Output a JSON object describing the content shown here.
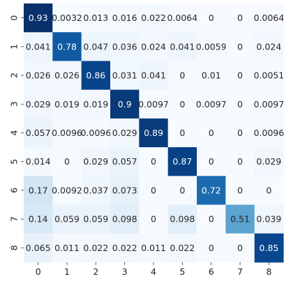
{
  "chart_data": {
    "type": "heatmap",
    "title": "",
    "xlabel": "",
    "ylabel": "",
    "x_categories": [
      "0",
      "1",
      "2",
      "3",
      "4",
      "5",
      "6",
      "7",
      "8"
    ],
    "y_categories": [
      "0",
      "1",
      "2",
      "3",
      "4",
      "5",
      "6",
      "7",
      "8"
    ],
    "colormap": "Blues",
    "vmin": 0,
    "vmax": 0.93,
    "colorbar": false,
    "text_color_dark": "#262626",
    "text_color_light": "#ffffff",
    "values": [
      [
        0.93,
        0.0032,
        0.013,
        0.016,
        0.022,
        0.0064,
        0,
        0,
        0.0064
      ],
      [
        0.041,
        0.78,
        0.047,
        0.036,
        0.024,
        0.041,
        0.0059,
        0,
        0.024
      ],
      [
        0.026,
        0.026,
        0.86,
        0.031,
        0.041,
        0,
        0.01,
        0,
        0.0051
      ],
      [
        0.029,
        0.019,
        0.019,
        0.9,
        0.0097,
        0,
        0.0097,
        0,
        0.0097
      ],
      [
        0.057,
        0.0096,
        0.0096,
        0.029,
        0.89,
        0,
        0,
        0,
        0.0096
      ],
      [
        0.014,
        0,
        0.029,
        0.057,
        0,
        0.87,
        0,
        0,
        0.029
      ],
      [
        0.17,
        0.0092,
        0.037,
        0.073,
        0,
        0,
        0.72,
        0,
        0
      ],
      [
        0.14,
        0.059,
        0.059,
        0.098,
        0,
        0.098,
        0,
        0.51,
        0.039
      ],
      [
        0.065,
        0.011,
        0.022,
        0.022,
        0.011,
        0.022,
        0,
        0,
        0.85
      ]
    ],
    "labels": [
      [
        "0.93",
        "0.0032",
        "0.013",
        "0.016",
        "0.022",
        "0.0064",
        "0",
        "0",
        "0.0064"
      ],
      [
        "0.041",
        "0.78",
        "0.047",
        "0.036",
        "0.024",
        "0.041",
        "0.0059",
        "0",
        "0.024"
      ],
      [
        "0.026",
        "0.026",
        "0.86",
        "0.031",
        "0.041",
        "0",
        "0.01",
        "0",
        "0.0051"
      ],
      [
        "0.029",
        "0.019",
        "0.019",
        "0.9",
        "0.0097",
        "0",
        "0.0097",
        "0",
        "0.0097"
      ],
      [
        "0.057",
        "0.0096",
        "0.0096",
        "0.029",
        "0.89",
        "0",
        "0",
        "0",
        "0.0096"
      ],
      [
        "0.014",
        "0",
        "0.029",
        "0.057",
        "0",
        "0.87",
        "0",
        "0",
        "0.029"
      ],
      [
        "0.17",
        "0.0092",
        "0.037",
        "0.073",
        "0",
        "0",
        "0.72",
        "0",
        "0"
      ],
      [
        "0.14",
        "0.059",
        "0.059",
        "0.098",
        "0",
        "0.098",
        "0",
        "0.51",
        "0.039"
      ],
      [
        "0.065",
        "0.011",
        "0.022",
        "0.022",
        "0.011",
        "0.022",
        "0",
        "0",
        "0.85"
      ]
    ]
  }
}
